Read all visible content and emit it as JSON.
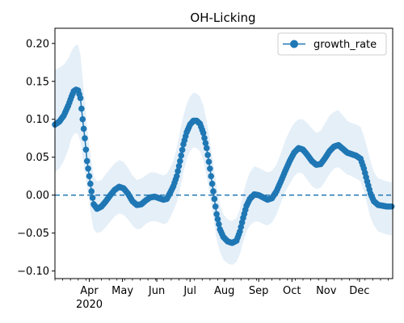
{
  "chart_data": {
    "type": "line",
    "title": "OH-Licking",
    "xlabel": "",
    "ylabel": "",
    "x_start": "2020-03-01",
    "x_end": "2020-12-31",
    "xlim": [
      "2020-03-01",
      "2020-12-31"
    ],
    "ylim": [
      -0.11,
      0.22
    ],
    "year_label": "2020",
    "x_ticks": [
      {
        "date": "2020-04-01",
        "label": "Apr"
      },
      {
        "date": "2020-05-01",
        "label": "May"
      },
      {
        "date": "2020-06-01",
        "label": "Jun"
      },
      {
        "date": "2020-07-01",
        "label": "Jul"
      },
      {
        "date": "2020-08-01",
        "label": "Aug"
      },
      {
        "date": "2020-09-01",
        "label": "Sep"
      },
      {
        "date": "2020-10-01",
        "label": "Oct"
      },
      {
        "date": "2020-11-01",
        "label": "Nov"
      },
      {
        "date": "2020-12-01",
        "label": "Dec"
      }
    ],
    "y_ticks": [
      {
        "value": -0.1,
        "label": "−0.10"
      },
      {
        "value": -0.05,
        "label": "−0.05"
      },
      {
        "value": 0.0,
        "label": "0.00"
      },
      {
        "value": 0.05,
        "label": "0.05"
      },
      {
        "value": 0.1,
        "label": "0.10"
      },
      {
        "value": 0.15,
        "label": "0.15"
      },
      {
        "value": 0.2,
        "label": "0.20"
      }
    ],
    "reference_line": {
      "value": 0.0,
      "style": "dashed",
      "color": "#1f77b4"
    },
    "legend": {
      "placement": "top-right",
      "entries": [
        "growth_rate"
      ]
    },
    "series": [
      {
        "name": "growth_rate",
        "color": "#1f77b4",
        "band_color": "#c6dbef",
        "points": [
          [
            "2020-03-01",
            0.093,
            0.03,
            0.165
          ],
          [
            "2020-03-05",
            0.097,
            0.035,
            0.168
          ],
          [
            "2020-03-09",
            0.105,
            0.045,
            0.172
          ],
          [
            "2020-03-13",
            0.118,
            0.06,
            0.18
          ],
          [
            "2020-03-16",
            0.13,
            0.075,
            0.19
          ],
          [
            "2020-03-18",
            0.137,
            0.08,
            0.195
          ],
          [
            "2020-03-20",
            0.139,
            0.082,
            0.198
          ],
          [
            "2020-03-22",
            0.138,
            0.08,
            0.198
          ],
          [
            "2020-03-24",
            0.128,
            0.07,
            0.185
          ],
          [
            "2020-03-26",
            0.1,
            0.05,
            0.155
          ],
          [
            "2020-03-28",
            0.075,
            0.03,
            0.125
          ],
          [
            "2020-03-30",
            0.045,
            0.01,
            0.09
          ],
          [
            "2020-04-01",
            0.025,
            -0.01,
            0.065
          ],
          [
            "2020-04-03",
            0.005,
            -0.03,
            0.045
          ],
          [
            "2020-04-05",
            -0.012,
            -0.045,
            0.025
          ],
          [
            "2020-04-08",
            -0.018,
            -0.05,
            0.018
          ],
          [
            "2020-04-12",
            -0.015,
            -0.048,
            0.02
          ],
          [
            "2020-04-16",
            -0.008,
            -0.042,
            0.028
          ],
          [
            "2020-04-20",
            0.0,
            -0.035,
            0.035
          ],
          [
            "2020-04-24",
            0.007,
            -0.028,
            0.042
          ],
          [
            "2020-04-28",
            0.011,
            -0.024,
            0.046
          ],
          [
            "2020-05-02",
            0.009,
            -0.026,
            0.044
          ],
          [
            "2020-05-06",
            0.002,
            -0.032,
            0.036
          ],
          [
            "2020-05-10",
            -0.008,
            -0.04,
            0.026
          ],
          [
            "2020-05-14",
            -0.013,
            -0.045,
            0.02
          ],
          [
            "2020-05-18",
            -0.012,
            -0.044,
            0.022
          ],
          [
            "2020-05-22",
            -0.007,
            -0.038,
            0.026
          ],
          [
            "2020-05-26",
            -0.003,
            -0.035,
            0.03
          ],
          [
            "2020-05-30",
            -0.002,
            -0.034,
            0.03
          ],
          [
            "2020-06-03",
            -0.004,
            -0.036,
            0.028
          ],
          [
            "2020-06-07",
            -0.006,
            -0.038,
            0.026
          ],
          [
            "2020-06-10",
            -0.005,
            -0.037,
            0.028
          ],
          [
            "2020-06-13",
            0.003,
            -0.03,
            0.036
          ],
          [
            "2020-06-16",
            0.012,
            -0.02,
            0.045
          ],
          [
            "2020-06-19",
            0.025,
            -0.01,
            0.062
          ],
          [
            "2020-06-22",
            0.045,
            0.008,
            0.085
          ],
          [
            "2020-06-25",
            0.067,
            0.03,
            0.105
          ],
          [
            "2020-06-28",
            0.083,
            0.048,
            0.12
          ],
          [
            "2020-07-01",
            0.093,
            0.058,
            0.13
          ],
          [
            "2020-07-04",
            0.098,
            0.063,
            0.135
          ],
          [
            "2020-07-07",
            0.098,
            0.062,
            0.134
          ],
          [
            "2020-07-10",
            0.094,
            0.058,
            0.13
          ],
          [
            "2020-07-13",
            0.082,
            0.045,
            0.118
          ],
          [
            "2020-07-16",
            0.062,
            0.025,
            0.098
          ],
          [
            "2020-07-19",
            0.035,
            0.0,
            0.072
          ],
          [
            "2020-07-22",
            0.005,
            -0.03,
            0.042
          ],
          [
            "2020-07-25",
            -0.025,
            -0.058,
            0.012
          ],
          [
            "2020-07-28",
            -0.045,
            -0.075,
            -0.012
          ],
          [
            "2020-07-31",
            -0.055,
            -0.085,
            -0.025
          ],
          [
            "2020-08-04",
            -0.061,
            -0.09,
            -0.032
          ],
          [
            "2020-08-08",
            -0.063,
            -0.092,
            -0.034
          ],
          [
            "2020-08-12",
            -0.06,
            -0.088,
            -0.03
          ],
          [
            "2020-08-15",
            -0.048,
            -0.078,
            -0.018
          ],
          [
            "2020-08-18",
            -0.03,
            -0.062,
            0.002
          ],
          [
            "2020-08-21",
            -0.014,
            -0.048,
            0.018
          ],
          [
            "2020-08-24",
            -0.005,
            -0.04,
            0.03
          ],
          [
            "2020-08-28",
            0.001,
            -0.035,
            0.038
          ],
          [
            "2020-09-01",
            0.0,
            -0.035,
            0.036
          ],
          [
            "2020-09-05",
            -0.003,
            -0.038,
            0.033
          ],
          [
            "2020-09-09",
            -0.006,
            -0.04,
            0.03
          ],
          [
            "2020-09-13",
            -0.004,
            -0.036,
            0.032
          ],
          [
            "2020-09-17",
            0.005,
            -0.026,
            0.04
          ],
          [
            "2020-09-21",
            0.018,
            -0.01,
            0.055
          ],
          [
            "2020-09-25",
            0.032,
            0.005,
            0.072
          ],
          [
            "2020-09-29",
            0.045,
            0.015,
            0.085
          ],
          [
            "2020-10-03",
            0.056,
            0.025,
            0.095
          ],
          [
            "2020-10-07",
            0.062,
            0.03,
            0.1
          ],
          [
            "2020-10-11",
            0.06,
            0.028,
            0.1
          ],
          [
            "2020-10-15",
            0.053,
            0.02,
            0.095
          ],
          [
            "2020-10-19",
            0.045,
            0.012,
            0.088
          ],
          [
            "2020-10-23",
            0.04,
            0.008,
            0.082
          ],
          [
            "2020-10-27",
            0.041,
            0.01,
            0.085
          ],
          [
            "2020-10-31",
            0.049,
            0.018,
            0.095
          ],
          [
            "2020-11-04",
            0.058,
            0.028,
            0.105
          ],
          [
            "2020-11-08",
            0.064,
            0.035,
            0.11
          ],
          [
            "2020-11-12",
            0.066,
            0.037,
            0.112
          ],
          [
            "2020-11-16",
            0.061,
            0.032,
            0.105
          ],
          [
            "2020-11-20",
            0.056,
            0.027,
            0.098
          ],
          [
            "2020-11-24",
            0.054,
            0.025,
            0.095
          ],
          [
            "2020-11-28",
            0.052,
            0.022,
            0.093
          ],
          [
            "2020-12-02",
            0.048,
            0.018,
            0.09
          ],
          [
            "2020-12-05",
            0.035,
            0.005,
            0.078
          ],
          [
            "2020-12-08",
            0.018,
            -0.012,
            0.062
          ],
          [
            "2020-12-11",
            0.002,
            -0.03,
            0.045
          ],
          [
            "2020-12-14",
            -0.008,
            -0.04,
            0.03
          ],
          [
            "2020-12-18",
            -0.013,
            -0.048,
            0.022
          ],
          [
            "2020-12-22",
            -0.014,
            -0.05,
            0.02
          ],
          [
            "2020-12-26",
            -0.015,
            -0.052,
            0.018
          ],
          [
            "2020-12-30",
            -0.015,
            -0.053,
            0.017
          ]
        ]
      }
    ]
  }
}
